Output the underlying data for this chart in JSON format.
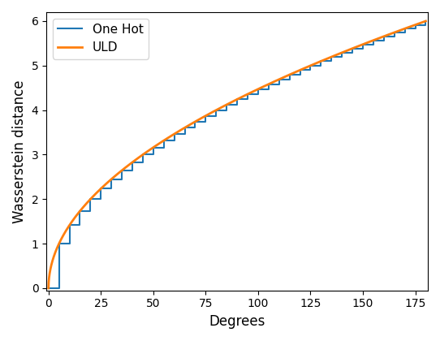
{
  "xlabel": "Degrees",
  "ylabel": "Wasserstein distance",
  "legend_one_hot": "One Hot",
  "legend_uld": "ULD",
  "color_one_hot": "#1f77b4",
  "color_uld": "#ff7f0e",
  "xlim": [
    -1,
    181
  ],
  "ylim": [
    -0.05,
    6.2
  ],
  "xticks": [
    0,
    25,
    50,
    75,
    100,
    125,
    150,
    175
  ],
  "yticks": [
    0,
    1,
    2,
    3,
    4,
    5,
    6
  ],
  "figsize": [
    5.42,
    4.2
  ],
  "dpi": 100,
  "num_bins": 36,
  "max_degrees": 180,
  "max_wasserstein": 6.0
}
